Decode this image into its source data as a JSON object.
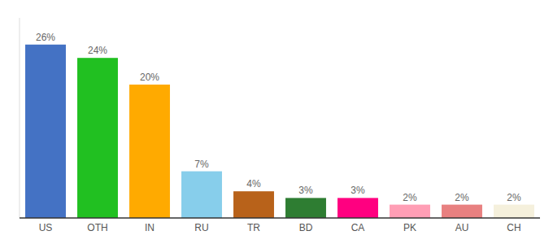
{
  "chart_data": {
    "type": "bar",
    "categories": [
      "US",
      "OTH",
      "IN",
      "RU",
      "TR",
      "BD",
      "CA",
      "PK",
      "AU",
      "CH"
    ],
    "values": [
      26,
      24,
      20,
      7,
      4,
      3,
      3,
      2,
      2,
      2
    ],
    "value_labels": [
      "26%",
      "24%",
      "20%",
      "7%",
      "4%",
      "3%",
      "3%",
      "2%",
      "2%",
      "2%"
    ],
    "colors": [
      "#4472c4",
      "#21c021",
      "#ffaa00",
      "#87ceeb",
      "#b8621a",
      "#2e7d32",
      "#ff0080",
      "#ff9eb5",
      "#e88080",
      "#f5f0dc"
    ],
    "ylim": [
      0,
      30
    ],
    "grid": false,
    "data_labels": true,
    "tick_labels": "x"
  }
}
